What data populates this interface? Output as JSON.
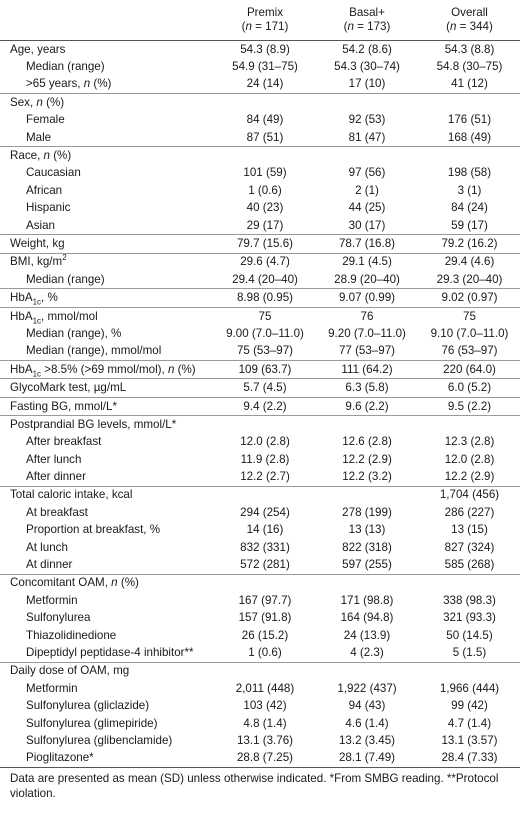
{
  "header": {
    "label": "",
    "columns": [
      {
        "name": "Premix",
        "n_prefix": "(",
        "n_italic": "n",
        "n_rest": " = 171)"
      },
      {
        "name": "Basal+",
        "n_prefix": "(",
        "n_italic": "n",
        "n_rest": " = 173)"
      },
      {
        "name": "Overall",
        "n_prefix": "(",
        "n_italic": "n",
        "n_rest": " = 344)"
      }
    ]
  },
  "rows": [
    {
      "sec": true,
      "indent": false,
      "label": "Age, years",
      "v": [
        "54.3 (8.9)",
        "54.2 (8.6)",
        "54.3 (8.8)"
      ]
    },
    {
      "sec": false,
      "indent": true,
      "label": "Median (range)",
      "v": [
        "54.9 (31–75)",
        "54.3 (30–74)",
        "54.8 (30–75)"
      ]
    },
    {
      "sec": false,
      "indent": true,
      "label": ">65 years, n (%)",
      "v": [
        "24 (14)",
        "17 (10)",
        "41 (12)"
      ]
    },
    {
      "sec": true,
      "indent": false,
      "label": "Sex, n (%)",
      "v": [
        "",
        "",
        ""
      ]
    },
    {
      "sec": false,
      "indent": true,
      "label": "Female",
      "v": [
        "84 (49)",
        "92 (53)",
        "176 (51)"
      ]
    },
    {
      "sec": false,
      "indent": true,
      "label": "Male",
      "v": [
        "87 (51)",
        "81 (47)",
        "168 (49)"
      ]
    },
    {
      "sec": true,
      "indent": false,
      "label": "Race, n (%)",
      "v": [
        "",
        "",
        ""
      ]
    },
    {
      "sec": false,
      "indent": true,
      "label": "Caucasian",
      "v": [
        "101 (59)",
        "97 (56)",
        "198 (58)"
      ]
    },
    {
      "sec": false,
      "indent": true,
      "label": "African",
      "v": [
        "1 (0.6)",
        "2 (1)",
        "3 (1)"
      ]
    },
    {
      "sec": false,
      "indent": true,
      "label": "Hispanic",
      "v": [
        "40 (23)",
        "44 (25)",
        "84 (24)"
      ]
    },
    {
      "sec": false,
      "indent": true,
      "label": "Asian",
      "v": [
        "29 (17)",
        "30 (17)",
        "59 (17)"
      ]
    },
    {
      "sec": true,
      "indent": false,
      "label": "Weight, kg",
      "v": [
        "79.7 (15.6)",
        "78.7 (16.8)",
        "79.2 (16.2)"
      ]
    },
    {
      "sec": true,
      "indent": false,
      "label": "BMI, kg/m²",
      "v": [
        "29.6 (4.7)",
        "29.1 (4.5)",
        "29.4 (4.6)"
      ]
    },
    {
      "sec": false,
      "indent": true,
      "label": "Median (range)",
      "v": [
        "29.4 (20–40)",
        "28.9 (20–40)",
        "29.3 (20–40)"
      ]
    },
    {
      "sec": true,
      "indent": false,
      "label": "HbA1c, %",
      "v": [
        "8.98 (0.95)",
        "9.07 (0.99)",
        "9.02 (0.97)"
      ]
    },
    {
      "sec": true,
      "indent": false,
      "label": "HbA1c, mmol/mol",
      "v": [
        "75",
        "76",
        "75"
      ]
    },
    {
      "sec": false,
      "indent": true,
      "label": "Median (range), %",
      "v": [
        "9.00 (7.0–11.0)",
        "9.20 (7.0–11.0)",
        "9.10 (7.0–11.0)"
      ]
    },
    {
      "sec": false,
      "indent": true,
      "label": "Median (range), mmol/mol",
      "v": [
        "75 (53–97)",
        "77 (53–97)",
        "76 (53–97)"
      ]
    },
    {
      "sec": true,
      "indent": false,
      "label": "HbA1c >8.5% (>69 mmol/mol), n (%)",
      "v": [
        "109 (63.7)",
        "111 (64.2)",
        "220 (64.0)"
      ]
    },
    {
      "sec": true,
      "indent": false,
      "label": "GlycoMark test, µg/mL",
      "v": [
        "5.7 (4.5)",
        "6.3 (5.8)",
        "6.0 (5.2)"
      ]
    },
    {
      "sec": true,
      "indent": false,
      "label": "Fasting BG, mmol/L*",
      "v": [
        "9.4 (2.2)",
        "9.6 (2.2)",
        "9.5 (2.2)"
      ]
    },
    {
      "sec": true,
      "indent": false,
      "label": "Postprandial BG levels, mmol/L*",
      "v": [
        "",
        "",
        ""
      ]
    },
    {
      "sec": false,
      "indent": true,
      "label": "After breakfast",
      "v": [
        "12.0 (2.8)",
        "12.6 (2.8)",
        "12.3 (2.8)"
      ]
    },
    {
      "sec": false,
      "indent": true,
      "label": "After lunch",
      "v": [
        "11.9 (2.8)",
        "12.2 (2.9)",
        "12.0 (2.8)"
      ]
    },
    {
      "sec": false,
      "indent": true,
      "label": "After dinner",
      "v": [
        "12.2 (2.7)",
        "12.2 (3.2)",
        "12.2 (2.9)"
      ]
    },
    {
      "sec": true,
      "indent": false,
      "label": "Total caloric intake, kcal",
      "v": [
        "",
        "",
        "1,704 (456)"
      ]
    },
    {
      "sec": false,
      "indent": true,
      "label": "At breakfast",
      "v": [
        "294 (254)",
        "278 (199)",
        "286 (227)"
      ]
    },
    {
      "sec": false,
      "indent": true,
      "label": "Proportion at breakfast, %",
      "v": [
        "14 (16)",
        "13 (13)",
        "13 (15)"
      ]
    },
    {
      "sec": false,
      "indent": true,
      "label": "At lunch",
      "v": [
        "832 (331)",
        "822 (318)",
        "827 (324)"
      ]
    },
    {
      "sec": false,
      "indent": true,
      "label": "At dinner",
      "v": [
        "572 (281)",
        "597 (255)",
        "585 (268)"
      ]
    },
    {
      "sec": true,
      "indent": false,
      "label": "Concomitant OAM, n (%)",
      "v": [
        "",
        "",
        ""
      ]
    },
    {
      "sec": false,
      "indent": true,
      "label": "Metformin",
      "v": [
        "167 (97.7)",
        "171 (98.8)",
        "338 (98.3)"
      ]
    },
    {
      "sec": false,
      "indent": true,
      "label": "Sulfonylurea",
      "v": [
        "157 (91.8)",
        "164 (94.8)",
        "321 (93.3)"
      ]
    },
    {
      "sec": false,
      "indent": true,
      "label": "Thiazolidinedione",
      "v": [
        "26 (15.2)",
        "24 (13.9)",
        "50 (14.5)"
      ]
    },
    {
      "sec": false,
      "indent": true,
      "label": "Dipeptidyl peptidase-4 inhibitor**",
      "v": [
        "1 (0.6)",
        "4 (2.3)",
        "5 (1.5)"
      ]
    },
    {
      "sec": true,
      "indent": false,
      "label": "Daily dose of OAM, mg",
      "v": [
        "",
        "",
        ""
      ]
    },
    {
      "sec": false,
      "indent": true,
      "label": "Metformin",
      "v": [
        "2,011 (448)",
        "1,922 (437)",
        "1,966 (444)"
      ]
    },
    {
      "sec": false,
      "indent": true,
      "label": "Sulfonylurea (gliclazide)",
      "v": [
        "103 (42)",
        "94 (43)",
        "99 (42)"
      ]
    },
    {
      "sec": false,
      "indent": true,
      "label": "Sulfonylurea (glimepiride)",
      "v": [
        "4.8 (1.4)",
        "4.6 (1.4)",
        "4.7 (1.4)"
      ]
    },
    {
      "sec": false,
      "indent": true,
      "label": "Sulfonylurea (glibenclamide)",
      "v": [
        "13.1 (3.76)",
        "13.2 (3.45)",
        "13.1 (3.57)"
      ]
    },
    {
      "sec": false,
      "indent": true,
      "label": "Pioglitazone*",
      "v": [
        "28.8 (7.25)",
        "28.1 (7.49)",
        "28.4 (7.33)"
      ]
    }
  ],
  "footnote": "Data are presented as mean (SD) unless otherwise indicated. *From SMBG reading. **Protocol violation."
}
